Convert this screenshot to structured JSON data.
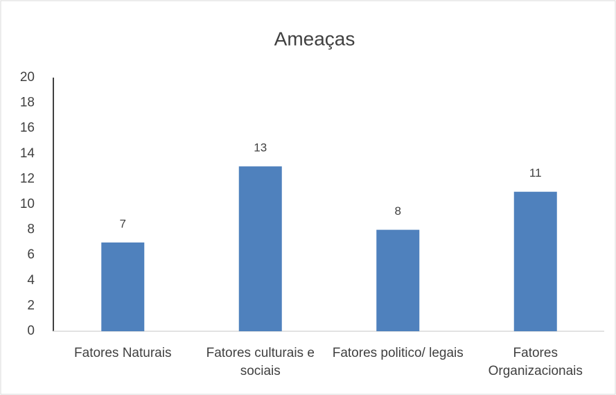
{
  "chart_data": {
    "type": "bar",
    "title": "Ameaças",
    "categories": [
      "Fatores Naturais",
      "Fatores culturais e sociais",
      "Fatores politico/ legais",
      "Fatores Organizacionais"
    ],
    "values": [
      7,
      13,
      8,
      11
    ],
    "color": "#4f81bd",
    "ylim": [
      0,
      20
    ],
    "yticks": [
      0,
      2,
      4,
      6,
      8,
      10,
      12,
      14,
      16,
      18,
      20
    ],
    "grid": false
  }
}
